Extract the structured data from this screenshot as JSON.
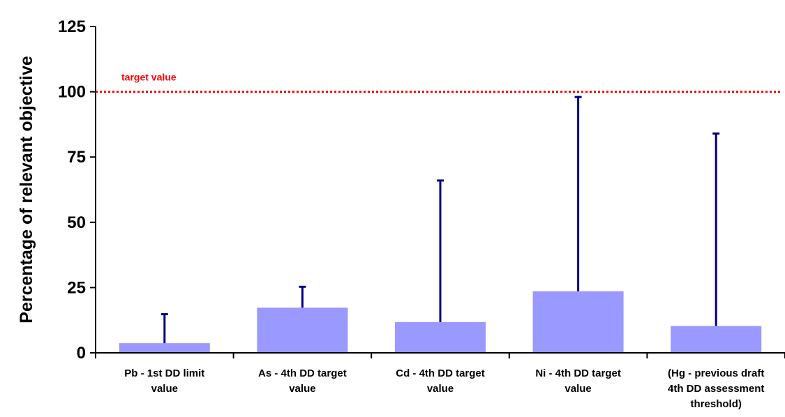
{
  "chart_data": {
    "type": "bar",
    "title": "",
    "xlabel": "",
    "ylabel": "Percentage of relevant objective",
    "ylim": [
      0,
      125
    ],
    "yticks": [
      0,
      25,
      50,
      75,
      100,
      125
    ],
    "grid": false,
    "legend": "none",
    "categories": [
      [
        "Pb - 1st DD limit",
        "value"
      ],
      [
        "As - 4th DD target",
        "value"
      ],
      [
        "Cd - 4th DD target",
        "value"
      ],
      [
        "Ni - 4th DD target",
        "value"
      ],
      [
        "(Hg - previous draft",
        "4th DD assessment",
        "threshold)"
      ]
    ],
    "values": [
      3.7,
      17.3,
      11.8,
      23.6,
      10.3
    ],
    "error_upper": [
      14.8,
      25.3,
      66.0,
      98.0,
      84.0
    ],
    "reference_line": {
      "value": 100,
      "label": "target value",
      "color": "#ff0000",
      "style": "dotted"
    },
    "colors": {
      "bar": "#9999ff",
      "error_bar": "#000080",
      "axis": "#000000"
    }
  }
}
